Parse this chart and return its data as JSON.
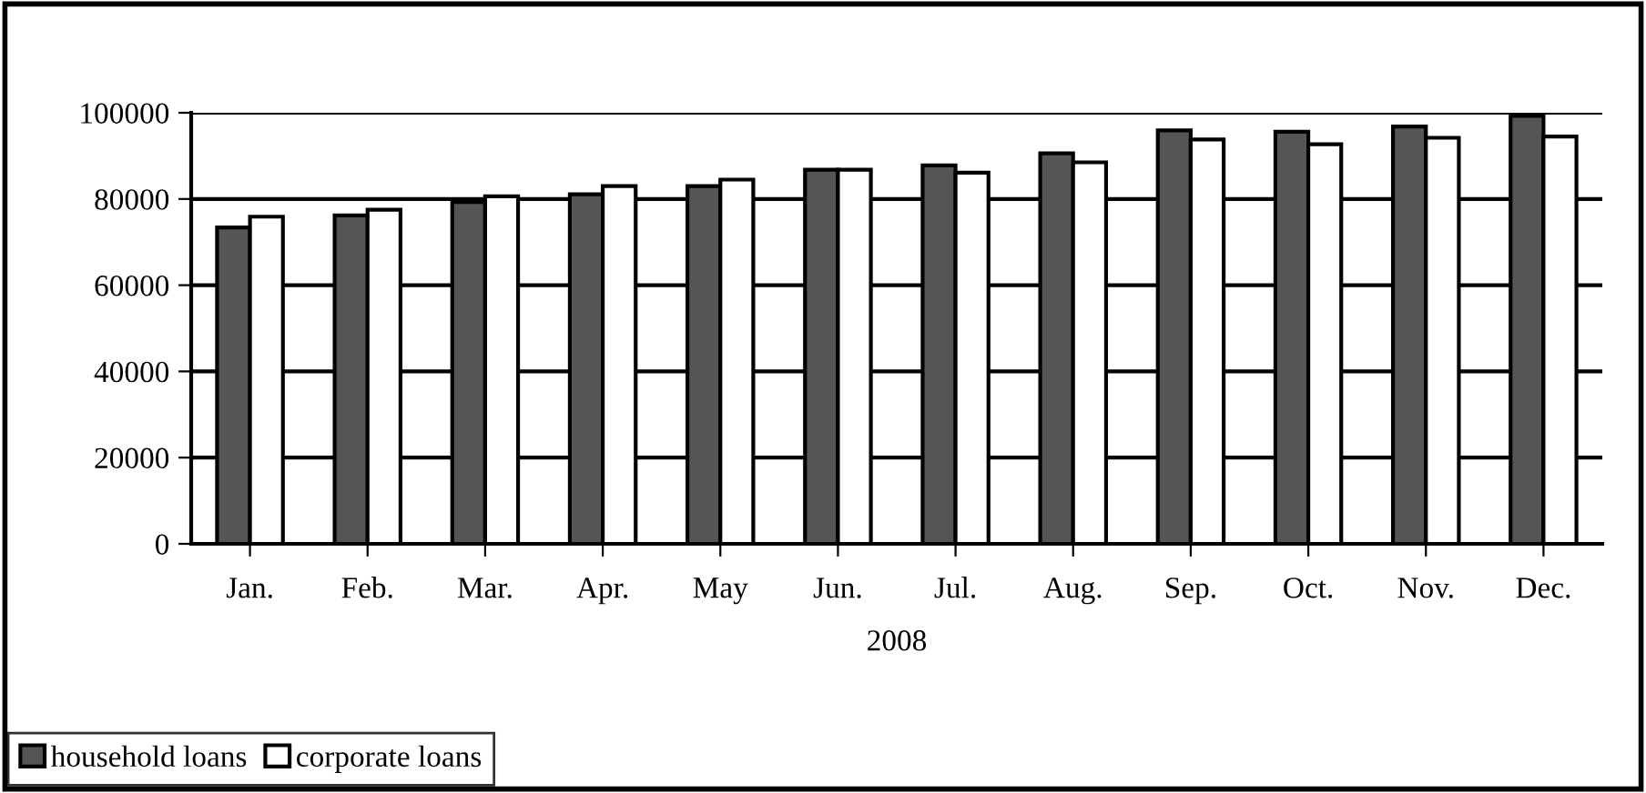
{
  "chart_data": {
    "type": "bar",
    "xlabel": "2008",
    "categories": [
      "Jan.",
      "Feb.",
      "Mar.",
      "Apr.",
      "May",
      "Jun.",
      "Jul.",
      "Aug.",
      "Sep.",
      "Oct.",
      "Nov.",
      "Dec."
    ],
    "series": [
      {
        "name": "household loans",
        "color": "#555555",
        "values": [
          73400,
          76200,
          79300,
          81100,
          83000,
          86800,
          87800,
          90600,
          95900,
          95600,
          96800,
          99300
        ]
      },
      {
        "name": "corporate loans",
        "color": "#ffffff",
        "values": [
          75900,
          77500,
          80600,
          83000,
          84500,
          86800,
          86100,
          88500,
          93800,
          92700,
          94200,
          94500
        ]
      }
    ],
    "ylim": [
      0,
      100000
    ],
    "yticks": [
      0,
      20000,
      40000,
      60000,
      80000,
      100000
    ],
    "grid": "y",
    "legend": "bottom left"
  }
}
